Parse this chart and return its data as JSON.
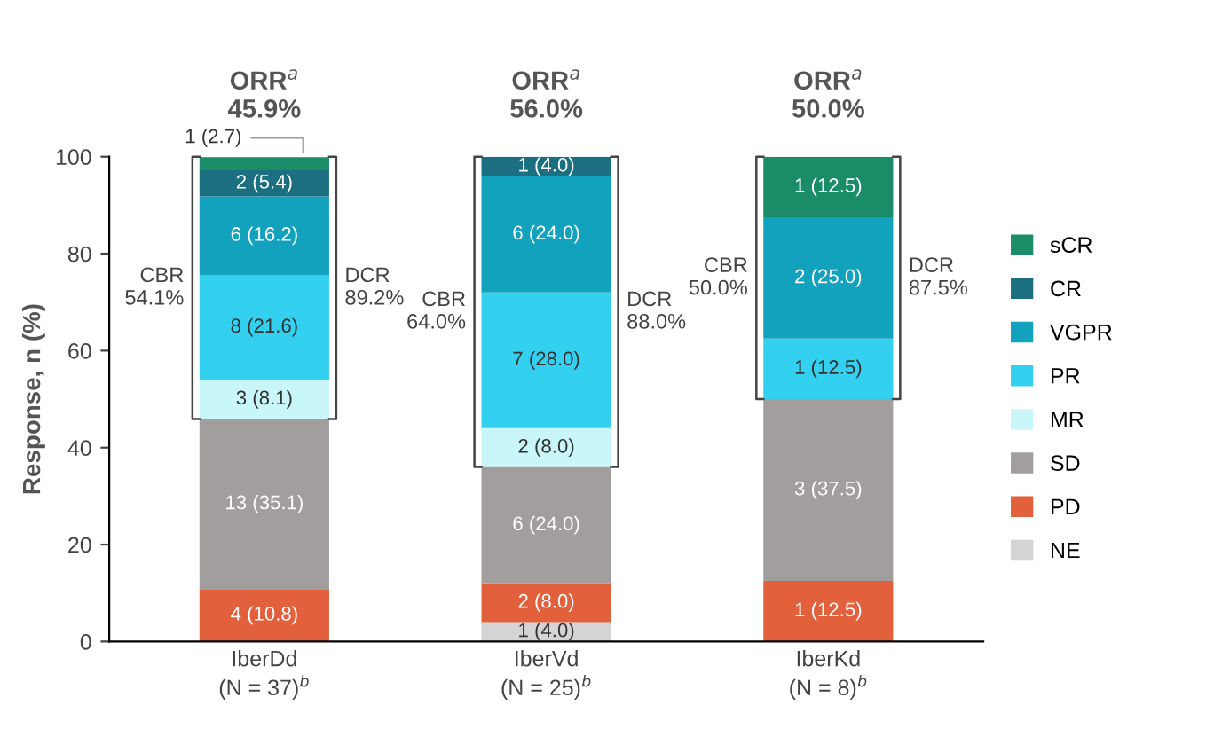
{
  "chart_data": {
    "type": "bar",
    "stacked": true,
    "ylabel": "Response, n (%)",
    "categories": [
      "IberDd\n(N = 37)$^{b}$",
      "IberVd\n(N = 25)$^{b}$",
      "IberKd\n(N = 8)$^{b}$"
    ],
    "series": [
      {
        "name": "NE",
        "color": "#d4d4d4",
        "values": [
          0,
          4.0,
          0
        ],
        "value_labels": [
          null,
          "1 (4.0)",
          null
        ]
      },
      {
        "name": "PD",
        "color": "#e2603c",
        "values": [
          10.8,
          8.0,
          12.5
        ],
        "value_labels": [
          "4 (10.8)",
          "2 (8.0)",
          "1 (12.5)"
        ]
      },
      {
        "name": "SD",
        "color": "#a39e9e",
        "values": [
          35.1,
          24.0,
          37.5
        ],
        "value_labels": [
          "13 (35.1)",
          "6 (24.0)",
          "3 (37.5)"
        ]
      },
      {
        "name": "MR",
        "color": "#c9f6f8",
        "values": [
          8.1,
          8.0,
          0
        ],
        "value_labels": [
          "3 (8.1)",
          "2 (8.0)",
          null
        ]
      },
      {
        "name": "PR",
        "color": "#33d1ef",
        "values": [
          21.6,
          28.0,
          12.5
        ],
        "value_labels": [
          "8 (21.6)",
          "7 (28.0)",
          "1 (12.5)"
        ]
      },
      {
        "name": "VGPR",
        "color": "#13a2bd",
        "values": [
          16.2,
          24.0,
          25.0
        ],
        "value_labels": [
          "6 (16.2)",
          "6 (24.0)",
          "2 (25.0)"
        ]
      },
      {
        "name": "CR",
        "color": "#1b6f80",
        "values": [
          5.4,
          4.0,
          0
        ],
        "value_labels": [
          "2 (5.4)",
          "1 (4.0)",
          null
        ]
      },
      {
        "name": "sCR",
        "color": "#1a8c68",
        "values": [
          2.7,
          0,
          12.5
        ],
        "value_labels": [
          "1 (2.7)",
          null,
          "1 (12.5)"
        ]
      }
    ],
    "ylim": [
      0,
      100
    ],
    "yticks": [
      0,
      20,
      40,
      60,
      80,
      100
    ],
    "grid": false,
    "legend": "right",
    "annotations": [
      "ORR$^{a}$\n45.9%",
      "CBR\n54.1%",
      "DCR\n89.2%",
      "ORR$^{a}$\n56.0%",
      "CBR\n64.0%",
      "DCR\n88.0%",
      "ORR$^{a}$\n50.0%",
      "CBR\n50.0%",
      "DCR\n87.5%"
    ]
  }
}
